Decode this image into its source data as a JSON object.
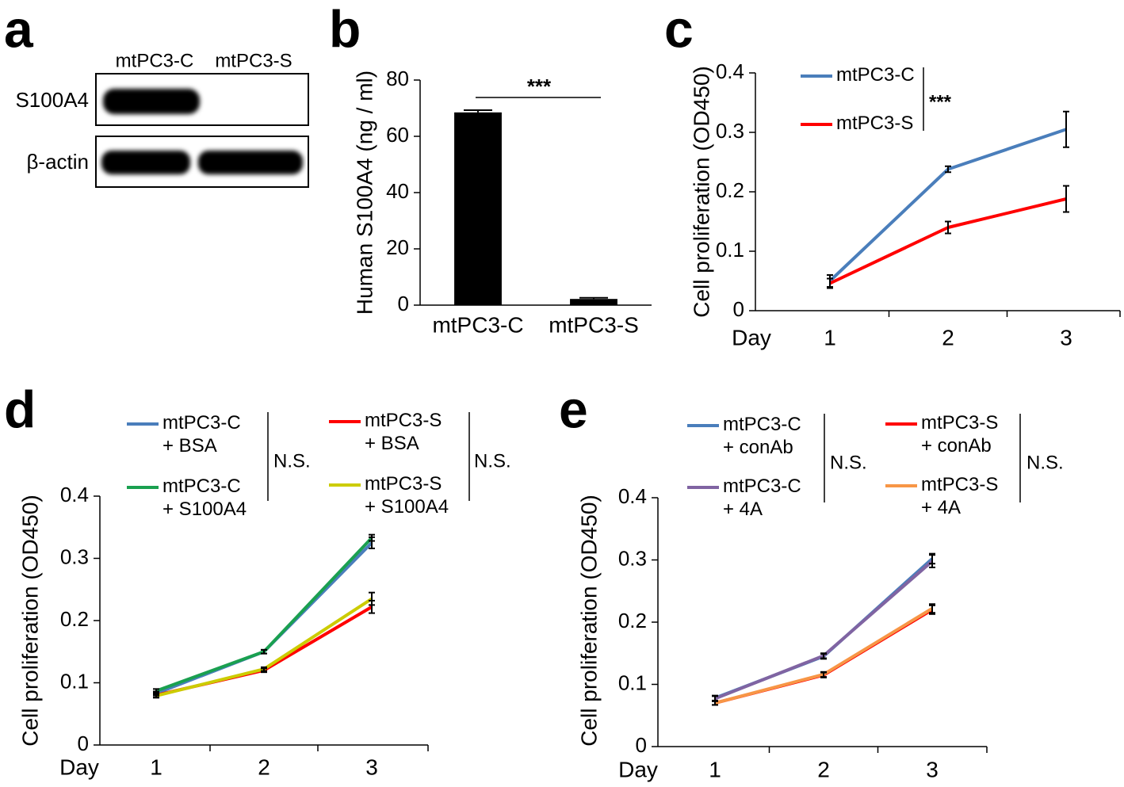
{
  "blot": {
    "panel": "a",
    "columns": [
      "mtPC3-C",
      "mtPC3-S"
    ],
    "rows": [
      "S100A4",
      "β-actin"
    ]
  },
  "chart_data": [
    {
      "type": "bar",
      "panel": "b",
      "ylabel": "Human S100A4 (ng / ml)",
      "categories": [
        "mtPC3-C",
        "mtPC3-S"
      ],
      "values": [
        68.5,
        2.2
      ],
      "errors": [
        0.8,
        0.4
      ],
      "color": "#000000",
      "ylim": [
        0,
        80
      ],
      "yticks": [
        0,
        20,
        40,
        60,
        80
      ],
      "annotations": [
        "***"
      ]
    },
    {
      "type": "line",
      "panel": "c",
      "ylabel": "Cell proliferation (OD450)",
      "xlabel": "Day",
      "categories": [
        "1",
        "2",
        "3"
      ],
      "ylim": [
        0,
        0.4
      ],
      "yticks": [
        0,
        0.1,
        0.2,
        0.3,
        0.4
      ],
      "annotations": [
        "***"
      ],
      "series": [
        {
          "name": "mtPC3-C",
          "color": "#4a7ebb",
          "values": [
            0.05,
            0.238,
            0.305
          ],
          "errors": [
            0.01,
            0.005,
            0.03
          ]
        },
        {
          "name": "mtPC3-S",
          "color": "#ff0000",
          "values": [
            0.046,
            0.14,
            0.188
          ],
          "errors": [
            0.008,
            0.01,
            0.022
          ]
        }
      ]
    },
    {
      "type": "line",
      "panel": "d",
      "ylabel": "Cell proliferation (OD450)",
      "xlabel": "Day",
      "categories": [
        "1",
        "2",
        "3"
      ],
      "ylim": [
        0,
        0.4
      ],
      "yticks": [
        0,
        0.1,
        0.2,
        0.3,
        0.4
      ],
      "annotations": [
        "N.S.",
        "N.S."
      ],
      "series": [
        {
          "name": "mtPC3-C\n+ BSA",
          "color": "#4a7ebb",
          "values": [
            0.083,
            0.15,
            0.325
          ],
          "errors": [
            0.003,
            0.003,
            0.009
          ]
        },
        {
          "name": "mtPC3-C\n+ S100A4",
          "color": "#1aa050",
          "values": [
            0.087,
            0.15,
            0.333
          ],
          "errors": [
            0.003,
            0.003,
            0.005
          ]
        },
        {
          "name": "mtPC3-S\n+ BSA",
          "color": "#ff0000",
          "values": [
            0.08,
            0.12,
            0.222
          ],
          "errors": [
            0.003,
            0.003,
            0.01
          ]
        },
        {
          "name": "mtPC3-S\n+ S100A4",
          "color": "#cccc00",
          "values": [
            0.079,
            0.122,
            0.235
          ],
          "errors": [
            0.003,
            0.003,
            0.01
          ]
        }
      ]
    },
    {
      "type": "line",
      "panel": "e",
      "ylabel": "Cell proliferation (OD450)",
      "xlabel": "Day",
      "categories": [
        "1",
        "2",
        "3"
      ],
      "ylim": [
        0,
        0.4
      ],
      "yticks": [
        0,
        0.1,
        0.2,
        0.3,
        0.4
      ],
      "annotations": [
        "N.S.",
        "N.S."
      ],
      "series": [
        {
          "name": "mtPC3-C\n+ conAb",
          "color": "#4a7ebb",
          "values": [
            0.078,
            0.145,
            0.302
          ],
          "errors": [
            0.004,
            0.004,
            0.008
          ]
        },
        {
          "name": "mtPC3-C\n+ 4A",
          "color": "#8064a2",
          "values": [
            0.077,
            0.146,
            0.298
          ],
          "errors": [
            0.004,
            0.004,
            0.01
          ]
        },
        {
          "name": "mtPC3-S\n+ conAb",
          "color": "#ff0000",
          "values": [
            0.07,
            0.115,
            0.22
          ],
          "errors": [
            0.003,
            0.004,
            0.007
          ]
        },
        {
          "name": "mtPC3-S\n+ 4A",
          "color": "#f79646",
          "values": [
            0.07,
            0.116,
            0.222
          ],
          "errors": [
            0.003,
            0.004,
            0.007
          ]
        }
      ]
    }
  ]
}
